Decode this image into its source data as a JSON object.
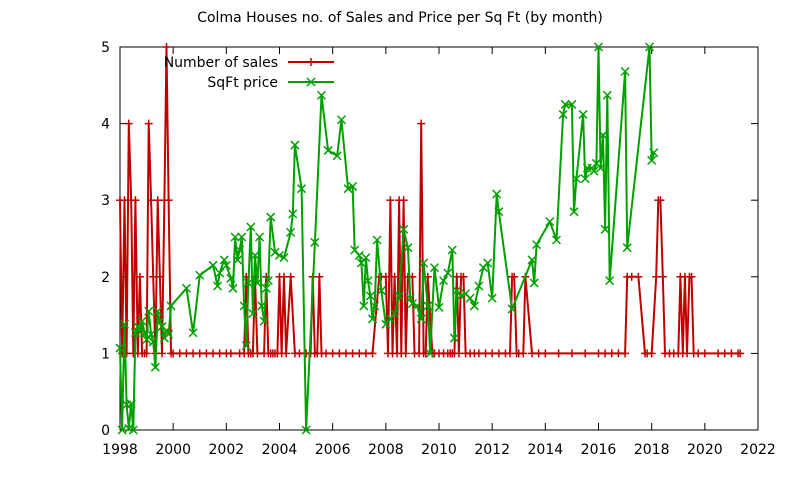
{
  "chart_data": {
    "type": "line",
    "title": "Colma Houses no. of Sales and Price per Sq Ft (by month)",
    "xlabel": "",
    "ylabel": "",
    "xlim": [
      1998,
      2022
    ],
    "ylim": [
      0,
      5
    ],
    "x_ticks": [
      1998,
      2000,
      2002,
      2004,
      2006,
      2008,
      2010,
      2012,
      2014,
      2016,
      2018,
      2020,
      2022
    ],
    "y_ticks": [
      0,
      1,
      2,
      3,
      4,
      5
    ],
    "grid": false,
    "legend_position": "top-center",
    "series": [
      {
        "name": "Number of sales",
        "color": "#c00000",
        "marker": "plus",
        "points": [
          [
            1998.0,
            3
          ],
          [
            1998.08,
            1
          ],
          [
            1998.17,
            3
          ],
          [
            1998.25,
            1
          ],
          [
            1998.33,
            4
          ],
          [
            1998.42,
            3
          ],
          [
            1998.5,
            1
          ],
          [
            1998.58,
            3
          ],
          [
            1998.67,
            1
          ],
          [
            1998.75,
            2
          ],
          [
            1998.83,
            1
          ],
          [
            1998.92,
            1
          ],
          [
            1999.0,
            1
          ],
          [
            1999.08,
            4
          ],
          [
            1999.17,
            3
          ],
          [
            1999.25,
            2
          ],
          [
            1999.33,
            1
          ],
          [
            1999.42,
            3
          ],
          [
            1999.5,
            2
          ],
          [
            1999.58,
            1
          ],
          [
            1999.67,
            3
          ],
          [
            1999.75,
            5
          ],
          [
            1999.83,
            3
          ],
          [
            1999.92,
            1
          ],
          [
            2000.0,
            1
          ],
          [
            2000.25,
            1
          ],
          [
            2000.5,
            1
          ],
          [
            2000.75,
            1
          ],
          [
            2001.0,
            1
          ],
          [
            2001.25,
            1
          ],
          [
            2001.5,
            1
          ],
          [
            2001.75,
            1
          ],
          [
            2002.0,
            1
          ],
          [
            2002.17,
            1
          ],
          [
            2002.5,
            1
          ],
          [
            2002.67,
            1
          ],
          [
            2002.75,
            2
          ],
          [
            2002.83,
            1
          ],
          [
            2002.92,
            1
          ],
          [
            2003.0,
            1
          ],
          [
            2003.08,
            2
          ],
          [
            2003.17,
            1
          ],
          [
            2003.42,
            1
          ],
          [
            2003.5,
            2
          ],
          [
            2003.58,
            1
          ],
          [
            2003.67,
            1
          ],
          [
            2003.75,
            1
          ],
          [
            2003.83,
            1
          ],
          [
            2003.92,
            1
          ],
          [
            2004.0,
            2
          ],
          [
            2004.08,
            1
          ],
          [
            2004.17,
            2
          ],
          [
            2004.25,
            1
          ],
          [
            2004.42,
            2
          ],
          [
            2004.58,
            1
          ],
          [
            2004.75,
            1
          ],
          [
            2005.0,
            1
          ],
          [
            2005.17,
            1
          ],
          [
            2005.25,
            2
          ],
          [
            2005.33,
            1
          ],
          [
            2005.42,
            1
          ],
          [
            2005.5,
            2
          ],
          [
            2005.58,
            1
          ],
          [
            2005.75,
            1
          ],
          [
            2006.0,
            1
          ],
          [
            2006.25,
            1
          ],
          [
            2006.5,
            1
          ],
          [
            2006.75,
            1
          ],
          [
            2007.0,
            1
          ],
          [
            2007.25,
            1
          ],
          [
            2007.5,
            1
          ],
          [
            2007.75,
            2
          ],
          [
            2007.83,
            2
          ],
          [
            2008.0,
            2
          ],
          [
            2008.08,
            1
          ],
          [
            2008.17,
            3
          ],
          [
            2008.25,
            1
          ],
          [
            2008.33,
            2
          ],
          [
            2008.42,
            1
          ],
          [
            2008.5,
            3
          ],
          [
            2008.58,
            1
          ],
          [
            2008.67,
            3
          ],
          [
            2008.75,
            1
          ],
          [
            2008.83,
            2
          ],
          [
            2009.0,
            2
          ],
          [
            2009.08,
            1
          ],
          [
            2009.25,
            1
          ],
          [
            2009.33,
            4
          ],
          [
            2009.42,
            1
          ],
          [
            2009.5,
            1
          ],
          [
            2009.58,
            2
          ],
          [
            2009.75,
            1
          ],
          [
            2009.83,
            1
          ],
          [
            2010.0,
            1
          ],
          [
            2010.17,
            1
          ],
          [
            2010.33,
            1
          ],
          [
            2010.42,
            1
          ],
          [
            2010.5,
            1
          ],
          [
            2010.58,
            1
          ],
          [
            2010.67,
            2
          ],
          [
            2010.75,
            1
          ],
          [
            2010.83,
            2
          ],
          [
            2010.92,
            2
          ],
          [
            2011.0,
            1
          ],
          [
            2011.17,
            1
          ],
          [
            2011.33,
            1
          ],
          [
            2011.5,
            1
          ],
          [
            2011.75,
            1
          ],
          [
            2012.0,
            1
          ],
          [
            2012.25,
            1
          ],
          [
            2012.5,
            1
          ],
          [
            2012.67,
            1
          ],
          [
            2012.75,
            2
          ],
          [
            2012.83,
            2
          ],
          [
            2012.92,
            1
          ],
          [
            2013.0,
            1
          ],
          [
            2013.17,
            1
          ],
          [
            2013.25,
            2
          ],
          [
            2013.5,
            1
          ],
          [
            2013.75,
            1
          ],
          [
            2014.0,
            1
          ],
          [
            2014.5,
            1
          ],
          [
            2015.0,
            1
          ],
          [
            2015.5,
            1
          ],
          [
            2016.0,
            1
          ],
          [
            2016.25,
            1
          ],
          [
            2016.5,
            1
          ],
          [
            2016.75,
            1
          ],
          [
            2017.0,
            1
          ],
          [
            2017.08,
            2
          ],
          [
            2017.25,
            2
          ],
          [
            2017.5,
            2
          ],
          [
            2017.75,
            1
          ],
          [
            2017.83,
            1
          ],
          [
            2018.0,
            1
          ],
          [
            2018.17,
            2
          ],
          [
            2018.25,
            3
          ],
          [
            2018.33,
            3
          ],
          [
            2018.42,
            2
          ],
          [
            2018.5,
            1
          ],
          [
            2018.67,
            1
          ],
          [
            2018.83,
            1
          ],
          [
            2019.0,
            1
          ],
          [
            2019.08,
            2
          ],
          [
            2019.17,
            1
          ],
          [
            2019.25,
            2
          ],
          [
            2019.33,
            1
          ],
          [
            2019.42,
            2
          ],
          [
            2019.5,
            2
          ],
          [
            2019.58,
            1
          ],
          [
            2019.75,
            1
          ],
          [
            2020.0,
            1
          ],
          [
            2020.5,
            1
          ],
          [
            2020.75,
            1
          ],
          [
            2021.0,
            1
          ],
          [
            2021.25,
            1
          ],
          [
            2021.33,
            1
          ]
        ]
      },
      {
        "name": "SqFt price",
        "color": "#00a000",
        "marker": "cross",
        "points": [
          [
            1998.0,
            1.07
          ],
          [
            1998.08,
            0.0
          ],
          [
            1998.17,
            1.38
          ],
          [
            1998.25,
            0.33
          ],
          [
            1998.33,
            0.02
          ],
          [
            1998.42,
            0.34
          ],
          [
            1998.5,
            0.0
          ],
          [
            1998.58,
            1.27
          ],
          [
            1998.67,
            1.35
          ],
          [
            1998.75,
            1.28
          ],
          [
            1998.83,
            1.42
          ],
          [
            1998.92,
            1.27
          ],
          [
            1999.0,
            1.18
          ],
          [
            1999.08,
            1.55
          ],
          [
            1999.17,
            1.25
          ],
          [
            1999.25,
            1.15
          ],
          [
            1999.33,
            0.82
          ],
          [
            1999.42,
            1.55
          ],
          [
            1999.5,
            1.42
          ],
          [
            1999.58,
            1.35
          ],
          [
            1999.67,
            1.2
          ],
          [
            1999.75,
            1.3
          ],
          [
            1999.83,
            1.25
          ],
          [
            1999.92,
            1.62
          ],
          [
            2000.5,
            1.85
          ],
          [
            2000.75,
            1.27
          ],
          [
            2001.0,
            2.02
          ],
          [
            2001.5,
            2.15
          ],
          [
            2001.67,
            1.88
          ],
          [
            2001.75,
            2.05
          ],
          [
            2001.92,
            2.22
          ],
          [
            2002.0,
            2.15
          ],
          [
            2002.17,
            1.98
          ],
          [
            2002.25,
            1.85
          ],
          [
            2002.33,
            2.52
          ],
          [
            2002.42,
            2.22
          ],
          [
            2002.5,
            2.35
          ],
          [
            2002.58,
            2.52
          ],
          [
            2002.67,
            1.62
          ],
          [
            2002.75,
            1.1
          ],
          [
            2002.83,
            1.92
          ],
          [
            2002.92,
            2.65
          ],
          [
            2003.0,
            1.52
          ],
          [
            2003.08,
            2.28
          ],
          [
            2003.17,
            1.92
          ],
          [
            2003.25,
            2.52
          ],
          [
            2003.33,
            1.62
          ],
          [
            2003.42,
            1.42
          ],
          [
            2003.5,
            1.85
          ],
          [
            2003.58,
            1.95
          ],
          [
            2003.67,
            2.78
          ],
          [
            2003.83,
            2.32
          ],
          [
            2004.0,
            2.28
          ],
          [
            2004.17,
            2.25
          ],
          [
            2004.42,
            2.58
          ],
          [
            2004.5,
            2.82
          ],
          [
            2004.58,
            3.72
          ],
          [
            2004.83,
            3.15
          ],
          [
            2005.0,
            0.0
          ],
          [
            2005.33,
            2.45
          ],
          [
            2005.58,
            4.37
          ],
          [
            2005.83,
            3.65
          ],
          [
            2006.17,
            3.58
          ],
          [
            2006.33,
            4.05
          ],
          [
            2006.58,
            3.15
          ],
          [
            2006.75,
            3.18
          ],
          [
            2006.83,
            2.35
          ],
          [
            2007.0,
            2.28
          ],
          [
            2007.08,
            2.18
          ],
          [
            2007.17,
            1.62
          ],
          [
            2007.25,
            2.25
          ],
          [
            2007.33,
            1.95
          ],
          [
            2007.42,
            1.75
          ],
          [
            2007.5,
            1.45
          ],
          [
            2007.58,
            1.62
          ],
          [
            2007.67,
            2.48
          ],
          [
            2007.83,
            1.82
          ],
          [
            2008.0,
            1.38
          ],
          [
            2008.17,
            1.45
          ],
          [
            2008.33,
            1.52
          ],
          [
            2008.5,
            1.75
          ],
          [
            2008.67,
            2.62
          ],
          [
            2008.83,
            2.38
          ],
          [
            2008.92,
            1.72
          ],
          [
            2009.0,
            1.65
          ],
          [
            2009.17,
            1.62
          ],
          [
            2009.33,
            1.45
          ],
          [
            2009.42,
            2.18
          ],
          [
            2009.58,
            1.62
          ],
          [
            2009.67,
            1.0
          ],
          [
            2009.83,
            2.12
          ],
          [
            2010.0,
            1.6
          ],
          [
            2010.17,
            1.95
          ],
          [
            2010.33,
            2.05
          ],
          [
            2010.5,
            2.35
          ],
          [
            2010.58,
            1.2
          ],
          [
            2010.67,
            1.82
          ],
          [
            2010.83,
            1.75
          ],
          [
            2011.0,
            1.78
          ],
          [
            2011.17,
            1.72
          ],
          [
            2011.33,
            1.62
          ],
          [
            2011.5,
            1.88
          ],
          [
            2011.67,
            2.12
          ],
          [
            2011.83,
            2.18
          ],
          [
            2012.0,
            1.72
          ],
          [
            2012.17,
            3.08
          ],
          [
            2012.25,
            2.85
          ],
          [
            2012.75,
            1.58
          ],
          [
            2013.5,
            2.22
          ],
          [
            2013.58,
            1.92
          ],
          [
            2013.67,
            2.42
          ],
          [
            2014.17,
            2.72
          ],
          [
            2014.42,
            2.48
          ],
          [
            2014.67,
            4.12
          ],
          [
            2014.75,
            4.25
          ],
          [
            2015.0,
            4.25
          ],
          [
            2015.08,
            2.85
          ],
          [
            2015.17,
            3.28
          ],
          [
            2015.42,
            4.12
          ],
          [
            2015.5,
            3.28
          ],
          [
            2015.58,
            3.42
          ],
          [
            2015.75,
            3.42
          ],
          [
            2015.83,
            3.38
          ],
          [
            2015.92,
            3.48
          ],
          [
            2016.0,
            5.0
          ],
          [
            2016.08,
            3.42
          ],
          [
            2016.17,
            3.85
          ],
          [
            2016.25,
            2.62
          ],
          [
            2016.33,
            4.37
          ],
          [
            2016.42,
            1.95
          ],
          [
            2017.0,
            4.68
          ],
          [
            2017.08,
            2.38
          ],
          [
            2017.92,
            5.0
          ],
          [
            2018.0,
            3.52
          ],
          [
            2018.08,
            3.62
          ]
        ]
      }
    ]
  }
}
